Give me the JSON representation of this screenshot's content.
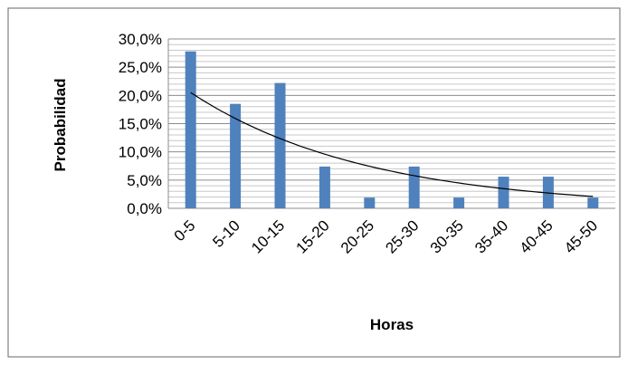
{
  "chart_data": {
    "type": "bar",
    "title": "",
    "xlabel": "Horas",
    "ylabel": "Probabilidad",
    "categories": [
      "0-5",
      "5-10",
      "10-15",
      "15-20",
      "20-25",
      "25-30",
      "30-35",
      "35-40",
      "40-45",
      "45-50"
    ],
    "series": [
      {
        "values": [
          0.278,
          0.185,
          0.222,
          0.074,
          0.019,
          0.074,
          0.019,
          0.056,
          0.056,
          0.019
        ],
        "color": "#4f81bd"
      }
    ],
    "trendline": {
      "type": "exponential",
      "start_value": 0.205,
      "end_value": 0.021,
      "color": "#000000"
    },
    "ylim": [
      0,
      0.3
    ],
    "yticks": [
      0,
      0.05,
      0.1,
      0.15,
      0.2,
      0.25,
      0.3
    ],
    "ytick_labels": [
      "0,0%",
      "5,0%",
      "10,0%",
      "15,0%",
      "20,0%",
      "25,0%",
      "30,0%"
    ],
    "grid": true,
    "legend": "none"
  }
}
